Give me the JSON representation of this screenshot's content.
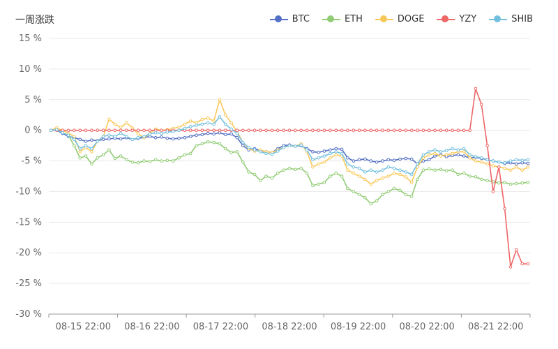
{
  "chart_data": {
    "type": "line",
    "title": "一周涨跌",
    "xlabel": "",
    "ylabel": "",
    "ylim": [
      -30,
      15
    ],
    "y_ticks": [
      "15 %",
      "10 %",
      "5 %",
      "0 %",
      "-5 %",
      "-10 %",
      "-15 %",
      "-20 %",
      "-25 %",
      "-30 %"
    ],
    "x_tick_labels": [
      "08-15 22:00",
      "08-16 22:00",
      "08-17 22:00",
      "08-18 22:00",
      "08-19 22:00",
      "08-20 22:00",
      "08-21 22:00"
    ],
    "grid": true,
    "legend": "top-right",
    "colors": {
      "BTC": "#5470c6",
      "ETH": "#91cc75",
      "DOGE": "#fac858",
      "YZY": "#ee6666",
      "SHIB": "#73c0de"
    },
    "series": [
      {
        "name": "BTC",
        "values": [
          0,
          0,
          -0.5,
          -1,
          -1.2,
          -1.5,
          -1.8,
          -1.6,
          -1.7,
          -1.5,
          -1.4,
          -1.3,
          -1.4,
          -1.2,
          -1.5,
          -1.3,
          -1.2,
          -1.0,
          -1.2,
          -1.1,
          -1.3,
          -1.4,
          -1.3,
          -1.2,
          -1.0,
          -0.8,
          -0.7,
          -0.5,
          -0.6,
          -0.4,
          -0.7,
          -0.6,
          -1.2,
          -2.5,
          -3.2,
          -3.0,
          -3.3,
          -3.5,
          -3.6,
          -3.0,
          -2.5,
          -2.4,
          -2.6,
          -2.5,
          -3.0,
          -3.5,
          -3.6,
          -3.4,
          -3.2,
          -3.0,
          -3.1,
          -4.5,
          -5.0,
          -4.8,
          -4.7,
          -5.0,
          -5.2,
          -5.0,
          -4.8,
          -4.9,
          -4.7,
          -4.6,
          -4.7,
          -5.5,
          -5.0,
          -4.8,
          -4.2,
          -4.0,
          -4.3,
          -4.1,
          -4.0,
          -4.2,
          -4.5,
          -4.4,
          -4.6,
          -4.8,
          -5.0,
          -5.2,
          -5.4,
          -5.3,
          -5.5,
          -5.3,
          -5.4
        ]
      },
      {
        "name": "ETH",
        "values": [
          0,
          0.2,
          -0.4,
          -0.8,
          -2.5,
          -4.5,
          -4.2,
          -5.5,
          -4.5,
          -4.0,
          -3.2,
          -4.6,
          -4.2,
          -4.8,
          -5.2,
          -5.3,
          -5.0,
          -5.1,
          -4.8,
          -5.0,
          -4.9,
          -5.0,
          -4.5,
          -4.0,
          -3.8,
          -2.5,
          -2.2,
          -1.9,
          -2.0,
          -2.2,
          -3.0,
          -3.6,
          -3.5,
          -5.2,
          -6.8,
          -7.2,
          -8.2,
          -7.5,
          -7.8,
          -7.0,
          -6.5,
          -6.2,
          -6.4,
          -6.2,
          -7.0,
          -9.0,
          -8.8,
          -8.5,
          -7.5,
          -7.0,
          -7.5,
          -9.5,
          -10.0,
          -10.5,
          -11.0,
          -12.0,
          -11.5,
          -10.5,
          -10.0,
          -9.5,
          -9.8,
          -10.5,
          -10.8,
          -8.0,
          -6.5,
          -6.3,
          -6.5,
          -6.4,
          -6.6,
          -6.5,
          -7.2,
          -7.0,
          -7.5,
          -7.6,
          -8.0,
          -8.2,
          -8.4,
          -8.6,
          -8.5,
          -8.8,
          -8.7,
          -8.6,
          -8.5
        ]
      },
      {
        "name": "DOGE",
        "values": [
          0,
          0.4,
          0,
          -0.5,
          -1.0,
          -3.5,
          -2.8,
          -3.5,
          -1.8,
          -1.0,
          1.8,
          1.0,
          0.5,
          1.2,
          0.4,
          -0.6,
          -1.2,
          -0.5,
          0.2,
          0,
          0.1,
          0.3,
          0.5,
          1.0,
          1.5,
          1.2,
          1.8,
          2.0,
          1.5,
          5.0,
          2.5,
          1.2,
          -0.2,
          -2.0,
          -3.0,
          -3.4,
          -3.2,
          -3.5,
          -3.6,
          -3.2,
          -2.8,
          -2.5,
          -2.6,
          -2.2,
          -3.5,
          -6.0,
          -5.5,
          -5.2,
          -4.5,
          -4.0,
          -4.2,
          -6.5,
          -7.0,
          -7.5,
          -8.0,
          -8.8,
          -8.2,
          -7.8,
          -7.5,
          -7.0,
          -7.2,
          -7.6,
          -8.5,
          -6.0,
          -4.5,
          -4.0,
          -3.8,
          -4.2,
          -4.0,
          -3.8,
          -3.5,
          -3.5,
          -4.5,
          -5.0,
          -5.2,
          -5.5,
          -5.8,
          -6.0,
          -6.2,
          -6.5,
          -6.0,
          -6.5,
          -6.0
        ]
      },
      {
        "name": "YZY",
        "values": [
          0,
          0,
          0,
          0,
          0,
          0,
          0,
          0,
          0,
          0,
          0,
          0,
          0,
          0,
          0,
          0,
          0,
          0,
          0,
          0,
          0,
          0,
          0,
          0,
          0,
          0,
          0,
          0,
          0,
          0,
          0,
          0,
          0,
          0,
          0,
          0,
          0,
          0,
          0,
          0,
          0,
          0,
          0,
          0,
          0,
          0,
          0,
          0,
          0,
          0,
          0,
          0,
          0,
          0,
          0,
          0,
          0,
          0,
          0,
          0,
          0,
          0,
          0,
          0,
          0,
          0,
          0,
          0,
          0,
          0,
          0,
          0,
          0,
          6.8,
          4.2,
          -2.5,
          -10.0,
          -6.0,
          -12.8,
          -22.3,
          -19.5,
          -21.8,
          -21.8
        ]
      },
      {
        "name": "SHIB",
        "values": [
          0,
          0.1,
          -0.4,
          -0.8,
          -1.5,
          -3.0,
          -2.5,
          -3.0,
          -1.8,
          -1.0,
          -0.8,
          -1.0,
          -0.5,
          -1.0,
          -1.5,
          -1.2,
          -1.0,
          -0.6,
          -0.4,
          -0.5,
          -0.3,
          -0.2,
          0,
          0.3,
          0.6,
          0.8,
          1.0,
          1.2,
          1.0,
          2.2,
          1.0,
          0.2,
          -0.5,
          -2.0,
          -2.8,
          -3.2,
          -3.5,
          -3.8,
          -3.9,
          -3.4,
          -2.8,
          -2.5,
          -2.6,
          -2.4,
          -3.2,
          -4.8,
          -4.5,
          -4.2,
          -3.8,
          -3.5,
          -3.8,
          -5.5,
          -6.0,
          -6.2,
          -6.8,
          -6.5,
          -6.8,
          -6.5,
          -6.0,
          -6.2,
          -6.5,
          -6.8,
          -7.2,
          -5.5,
          -4.0,
          -3.5,
          -3.2,
          -3.5,
          -3.3,
          -3.0,
          -3.2,
          -3.0,
          -4.0,
          -4.3,
          -4.5,
          -4.8,
          -5.0,
          -5.2,
          -5.3,
          -5.0,
          -4.8,
          -4.9,
          -4.8
        ]
      }
    ]
  }
}
